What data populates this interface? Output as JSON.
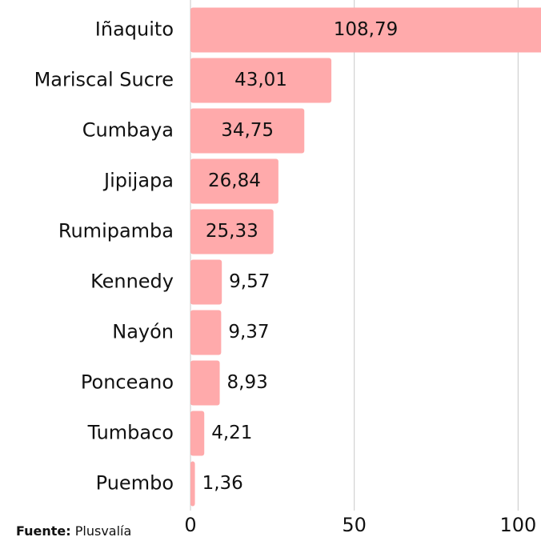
{
  "chart_data": {
    "type": "bar",
    "orientation": "horizontal",
    "categories": [
      "Iñaquito",
      "Mariscal Sucre",
      "Cumbaya",
      "Jipijapa",
      "Rumipamba",
      "Kennedy",
      "Nayón",
      "Ponceano",
      "Tumbaco",
      "Puembo"
    ],
    "values": [
      108.79,
      43.01,
      34.75,
      26.84,
      25.33,
      9.57,
      9.37,
      8.93,
      4.21,
      1.36
    ],
    "value_labels": [
      "108,79",
      "43,01",
      "34,75",
      "26,84",
      "25,33",
      "9,57",
      "9,37",
      "8,93",
      "4,21",
      "1,36"
    ],
    "color": "#ffaaab",
    "xlim": [
      0,
      107
    ],
    "xticks": [
      0,
      50,
      100
    ],
    "grid": true,
    "source": {
      "label": "Fuente:",
      "text": "Plusvalía"
    }
  }
}
